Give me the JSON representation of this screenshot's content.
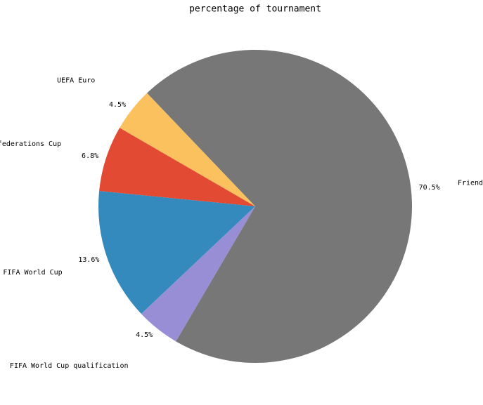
{
  "chart_data": {
    "type": "pie",
    "title": "percentage of tournament",
    "categories": [
      "Friendly",
      "UEFA Euro",
      "Confederations Cup",
      "FIFA World Cup",
      "FIFA World Cup qualification"
    ],
    "values": [
      70.5,
      4.5,
      6.8,
      13.6,
      4.5
    ],
    "value_labels": [
      "70.5%",
      "4.5%",
      "6.8%",
      "13.6%",
      "4.5%"
    ],
    "colors": [
      "#777777",
      "#fbc15e",
      "#e24a33",
      "#348abd",
      "#988ed5"
    ]
  }
}
